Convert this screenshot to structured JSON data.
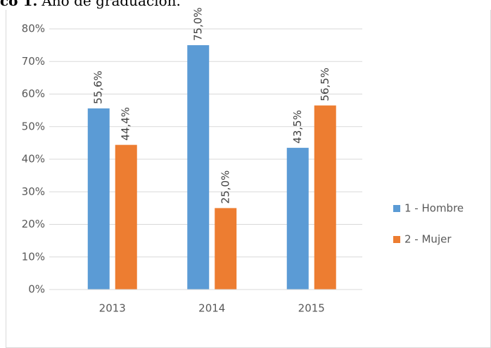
{
  "chart_data": {
    "type": "bar",
    "title_label": "co 1.",
    "title": "Año de graduación.",
    "categories": [
      "2013",
      "2014",
      "2015"
    ],
    "series": [
      {
        "name": "1 - Hombre",
        "color": "#5b9bd5",
        "values": [
          55.6,
          75.0,
          43.5
        ],
        "value_labels": [
          "55,6%",
          "75,0%",
          "43,5%"
        ]
      },
      {
        "name": "2 - Mujer",
        "color": "#ed7d31",
        "values": [
          44.4,
          25.0,
          56.5
        ],
        "value_labels": [
          "44,4%",
          "25,0%",
          "56,5%"
        ]
      }
    ],
    "ylim": [
      0,
      80
    ],
    "yticks": [
      {
        "value": 0,
        "label": "0%"
      },
      {
        "value": 10,
        "label": "10%"
      },
      {
        "value": 20,
        "label": "20%"
      },
      {
        "value": 30,
        "label": "30%"
      },
      {
        "value": 40,
        "label": "40%"
      },
      {
        "value": 50,
        "label": "50%"
      },
      {
        "value": 60,
        "label": "60%"
      },
      {
        "value": 70,
        "label": "70%"
      },
      {
        "value": 80,
        "label": "80%"
      }
    ],
    "grid": true,
    "legend": "right"
  }
}
